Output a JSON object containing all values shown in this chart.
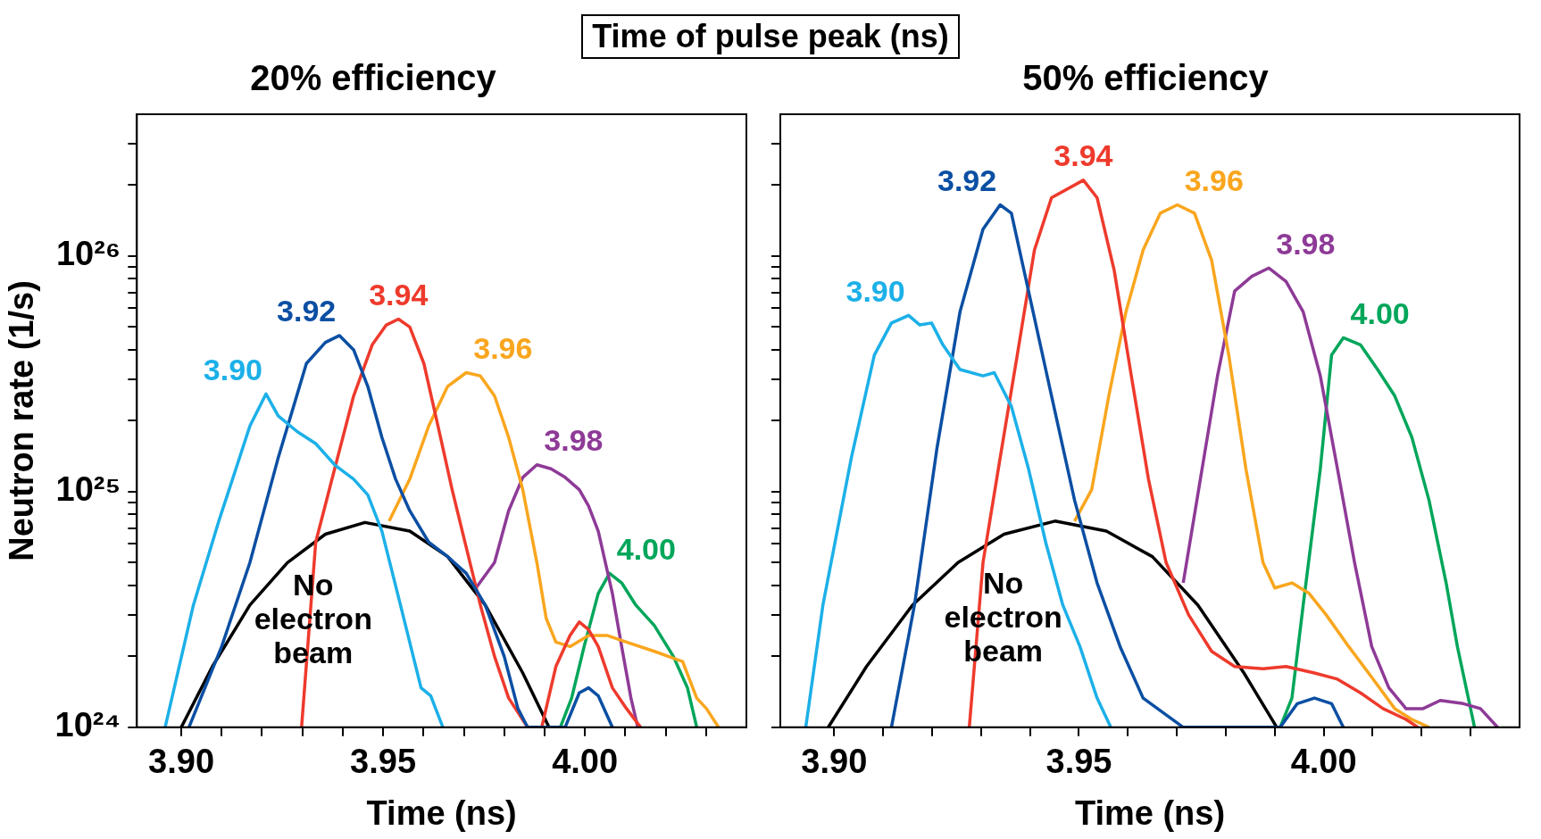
{
  "chart_data": [
    {
      "type": "line",
      "title": "20% efficiency",
      "xlabel": "Time (ns)",
      "ylabel": "Neutron rate (1/s)",
      "log": "y",
      "marker": "none",
      "line_style": "solid",
      "annotations": [
        "Time of pulse peak (ns)"
      ],
      "xlim": [
        3.889,
        4.04
      ],
      "xticks": [
        {
          "value": 3.9,
          "label": "3.90"
        },
        {
          "value": 3.91,
          "label": null
        },
        {
          "value": 3.92,
          "label": null
        },
        {
          "value": 3.93,
          "label": null
        },
        {
          "value": 3.94,
          "label": null
        },
        {
          "value": 3.95,
          "label": "3.95"
        },
        {
          "value": 3.96,
          "label": null
        },
        {
          "value": 3.97,
          "label": null
        },
        {
          "value": 3.98,
          "label": null
        },
        {
          "value": 3.99,
          "label": null
        },
        {
          "value": 4.0,
          "label": "4.00"
        },
        {
          "value": 4.01,
          "label": null
        },
        {
          "value": 4.02,
          "label": null
        },
        {
          "value": 4.03,
          "label": null
        }
      ],
      "ylim": [
        1e+24,
        4e+26
      ],
      "yticks": [
        {
          "value": 1e+24,
          "label": "10²⁴"
        },
        {
          "value": 2e+24,
          "label": null
        },
        {
          "value": 3e+24,
          "label": null
        },
        {
          "value": 4e+24,
          "label": null
        },
        {
          "value": 5e+24,
          "label": null
        },
        {
          "value": 6e+24,
          "label": null
        },
        {
          "value": 7e+24,
          "label": null
        },
        {
          "value": 8e+24,
          "label": null
        },
        {
          "value": 9e+24,
          "label": null
        },
        {
          "value": 1e+25,
          "label": "10²⁵"
        },
        {
          "value": 2e+25,
          "label": null
        },
        {
          "value": 3e+25,
          "label": null
        },
        {
          "value": 4e+25,
          "label": null
        },
        {
          "value": 5e+25,
          "label": null
        },
        {
          "value": 6e+25,
          "label": null
        },
        {
          "value": 7e+25,
          "label": null
        },
        {
          "value": 8e+25,
          "label": null
        },
        {
          "value": 9e+25,
          "label": null
        },
        {
          "value": 1e+26,
          "label": "10²⁶"
        },
        {
          "value": 2e+26,
          "label": null
        },
        {
          "value": 3e+26,
          "label": null
        }
      ],
      "series": [
        {
          "name": "3.90",
          "color": "#1cb0e8",
          "x": [
            3.896,
            3.903,
            3.9093,
            3.917,
            3.921,
            3.924,
            3.9287,
            3.9333,
            3.938,
            3.9427,
            3.9462,
            3.9497,
            3.9543,
            3.9594,
            3.9618,
            3.9648
          ],
          "values": [
            1e+24,
            3.3e+24,
            7.5e+24,
            1.9e+25,
            2.6e+25,
            2.1e+25,
            1.8e+25,
            1.6e+25,
            1.3e+25,
            1.13e+25,
            9.7e+24,
            6.8e+24,
            3.3e+24,
            1.47e+24,
            1.36e+24,
            1e+24
          ]
        },
        {
          "name": "3.92",
          "color": "#0b4fa3",
          "x": [
            3.9019,
            3.91,
            3.917,
            3.924,
            3.931,
            3.9357,
            3.9392,
            3.9427,
            3.9462,
            3.9497,
            3.9531,
            3.9566,
            3.9613,
            3.966,
            3.9706,
            3.9753,
            3.98,
            3.9834,
            3.9858,
            3.9951,
            3.9986,
            4.0009,
            4.0033,
            4.0068
          ],
          "values": [
            1e+24,
            2.2e+24,
            5e+24,
            1.39e+25,
            3.5e+25,
            4.3e+25,
            4.6e+25,
            4e+25,
            2.8e+25,
            1.7e+25,
            1.13e+25,
            8.3e+24,
            6.1e+24,
            5.3e+24,
            4.5e+24,
            3.3e+24,
            2e+24,
            1.2e+24,
            1e+24,
            1e+24,
            1.4e+24,
            1.47e+24,
            1.36e+24,
            1e+24
          ]
        },
        {
          "name": "3.94",
          "color": "#ee3a2c",
          "x": [
            3.9298,
            3.9333,
            3.938,
            3.9427,
            3.9473,
            3.9508,
            3.9538,
            3.9566,
            3.9601,
            3.9636,
            3.9671,
            3.9706,
            3.9741,
            3.9776,
            3.9811,
            3.9858,
            3.9893,
            3.9928,
            3.9963,
            3.9986,
            4.0009,
            4.0033,
            4.0068,
            4.0103,
            4.0138
          ],
          "values": [
            1e+24,
            6.1e+24,
            1.25e+25,
            2.55e+25,
            4.2e+25,
            5.1e+25,
            5.4e+25,
            5e+25,
            3.5e+25,
            1.9e+25,
            1.02e+25,
            5.8e+24,
            3.3e+24,
            2e+24,
            1.33e+24,
            1e+24,
            1e+24,
            1.81e+24,
            2.45e+24,
            2.8e+24,
            2.6e+24,
            2.2e+24,
            1.47e+24,
            1.2e+24,
            1e+24
          ]
        },
        {
          "name": "3.96",
          "color": "#f9a61e",
          "x": [
            3.9515,
            3.9566,
            3.9613,
            3.966,
            3.9706,
            3.9741,
            3.9776,
            3.9811,
            3.9846,
            3.9881,
            3.9904,
            3.9928,
            3.9963,
            4.0009,
            4.0056,
            4.0103,
            4.0172,
            4.0242,
            4.0277,
            4.0301,
            4.0331
          ],
          "values": [
            7.5e+24,
            1.13e+25,
            1.9e+25,
            2.8e+25,
            3.2e+25,
            3.1e+25,
            2.55e+25,
            1.7e+25,
            1.02e+25,
            5e+24,
            2.9e+24,
            2.3e+24,
            2.2e+24,
            2.45e+24,
            2.45e+24,
            2.3e+24,
            2.1e+24,
            1.9e+24,
            1.33e+24,
            1.2e+24,
            1e+24
          ]
        },
        {
          "name": "3.98",
          "color": "#8e3a97",
          "x": [
            3.973,
            3.9776,
            3.9811,
            3.9846,
            3.9881,
            3.9916,
            3.9951,
            3.9986,
            4.0009,
            4.0033,
            4.0068,
            4.0091,
            4.0114,
            4.0131
          ],
          "values": [
            3.9e+24,
            5e+24,
            8.3e+24,
            1.15e+25,
            1.3e+25,
            1.25e+25,
            1.15e+25,
            1.02e+25,
            8.7e+24,
            6.8e+24,
            3.7e+24,
            2.2e+24,
            1.33e+24,
            1e+24
          ]
        },
        {
          "name": "4.00",
          "color": "#00a65a",
          "x": [
            3.9939,
            3.9967,
            3.9998,
            4.0033,
            4.0061,
            4.0091,
            4.0126,
            4.0172,
            4.0219,
            4.0254,
            4.0277
          ],
          "values": [
            1e+24,
            1.33e+24,
            2.2e+24,
            3.7e+24,
            4.5e+24,
            4.1e+24,
            3.3e+24,
            2.7e+24,
            2e+24,
            1.47e+24,
            1e+24
          ]
        },
        {
          "name": "No electron beam",
          "color": "#000000",
          "x": [
            3.9,
            3.9077,
            3.917,
            3.9263,
            3.9357,
            3.9455,
            3.9566,
            3.966,
            3.9753,
            3.9846,
            3.9911
          ],
          "values": [
            1e+24,
            1.81e+24,
            3.3e+24,
            5e+24,
            6.6e+24,
            7.4e+24,
            6.8e+24,
            5.3e+24,
            3.3e+24,
            1.7e+24,
            1e+24
          ]
        }
      ]
    },
    {
      "type": "line",
      "title": "50% efficiency",
      "xlabel": "Time (ns)",
      "log": "y",
      "marker": "none",
      "line_style": "solid",
      "tick_labels": "x",
      "xlim": [
        3.889,
        4.04
      ],
      "xticks": [
        {
          "value": 3.9,
          "label": "3.90"
        },
        {
          "value": 3.91,
          "label": null
        },
        {
          "value": 3.92,
          "label": null
        },
        {
          "value": 3.93,
          "label": null
        },
        {
          "value": 3.94,
          "label": null
        },
        {
          "value": 3.95,
          "label": "3.95"
        },
        {
          "value": 3.96,
          "label": null
        },
        {
          "value": 3.97,
          "label": null
        },
        {
          "value": 3.98,
          "label": null
        },
        {
          "value": 3.99,
          "label": null
        },
        {
          "value": 4.0,
          "label": "4.00"
        },
        {
          "value": 4.01,
          "label": null
        },
        {
          "value": 4.02,
          "label": null
        },
        {
          "value": 4.03,
          "label": null
        }
      ],
      "ylim": [
        1e+24,
        4e+26
      ],
      "yticks": [
        {
          "value": 1e+24,
          "label": null
        },
        {
          "value": 2e+24,
          "label": null
        },
        {
          "value": 3e+24,
          "label": null
        },
        {
          "value": 4e+24,
          "label": null
        },
        {
          "value": 5e+24,
          "label": null
        },
        {
          "value": 6e+24,
          "label": null
        },
        {
          "value": 7e+24,
          "label": null
        },
        {
          "value": 8e+24,
          "label": null
        },
        {
          "value": 9e+24,
          "label": null
        },
        {
          "value": 1e+25,
          "label": null
        },
        {
          "value": 2e+25,
          "label": null
        },
        {
          "value": 3e+25,
          "label": null
        },
        {
          "value": 4e+25,
          "label": null
        },
        {
          "value": 5e+25,
          "label": null
        },
        {
          "value": 6e+25,
          "label": null
        },
        {
          "value": 7e+25,
          "label": null
        },
        {
          "value": 8e+25,
          "label": null
        },
        {
          "value": 9e+25,
          "label": null
        },
        {
          "value": 1e+26,
          "label": null
        },
        {
          "value": 2e+26,
          "label": null
        },
        {
          "value": 3e+26,
          "label": null
        }
      ],
      "series": [
        {
          "name": "3.90",
          "color": "#1cb0e8",
          "x": [
            3.8942,
            3.8977,
            3.9035,
            3.9082,
            3.9117,
            3.9152,
            3.9175,
            3.9199,
            3.9222,
            3.9257,
            3.9304,
            3.9327,
            3.9362,
            3.9397,
            3.9432,
            3.9467,
            3.9502,
            3.9537,
            3.9565
          ],
          "values": [
            1e+24,
            3.3e+24,
            1.39e+25,
            3.8e+25,
            5.2e+25,
            5.6e+25,
            5.1e+25,
            5.2e+25,
            4.2e+25,
            3.3e+25,
            3.1e+25,
            3.2e+25,
            2.3e+25,
            1.25e+25,
            6.1e+24,
            3.3e+24,
            2.2e+24,
            1.33e+24,
            1e+24
          ]
        },
        {
          "name": "3.92",
          "color": "#0b4fa3",
          "x": [
            3.9117,
            3.9164,
            3.921,
            3.9257,
            3.9304,
            3.9339,
            3.9362,
            3.9397,
            3.9444,
            3.9491,
            3.9537,
            3.9584,
            3.9631,
            3.9713,
            3.99,
            3.9911,
            3.9946,
            3.9981,
            4.0016,
            4.004
          ],
          "values": [
            1e+24,
            3.3e+24,
            1.53e+25,
            5.8e+25,
            1.3e+26,
            1.65e+26,
            1.52e+26,
            7.1e+25,
            2.55e+25,
            9.2e+24,
            4.1e+24,
            2.2e+24,
            1.33e+24,
            1e+24,
            1e+24,
            1e+24,
            1.26e+24,
            1.33e+24,
            1.26e+24,
            1e+24
          ]
        },
        {
          "name": "3.94",
          "color": "#ee3a2c",
          "x": [
            3.9276,
            3.9304,
            3.9339,
            3.9374,
            3.9409,
            3.9444,
            3.9509,
            3.9537,
            3.9572,
            3.9607,
            3.9642,
            3.9678,
            3.9724,
            3.9771,
            3.9818,
            3.9876,
            3.9923,
            3.9981,
            4.0028,
            4.0075,
            4.0121,
            4.0168,
            4.0192
          ],
          "values": [
            1e+24,
            5e+24,
            1.39e+25,
            3.8e+25,
            1.06e+26,
            1.77e+26,
            2.1e+26,
            1.77e+26,
            8.7e+25,
            3.1e+25,
            1.13e+25,
            5e+24,
            3e+24,
            2.1e+24,
            1.81e+24,
            1.77e+24,
            1.81e+24,
            1.7e+24,
            1.6e+24,
            1.4e+24,
            1.2e+24,
            1.08e+24,
            1e+24
          ]
        },
        {
          "name": "3.96",
          "color": "#f9a61e",
          "x": [
            3.9491,
            3.9526,
            3.9561,
            3.9596,
            3.9631,
            3.9666,
            3.9701,
            3.9736,
            3.9771,
            3.9806,
            3.9841,
            3.9876,
            3.99,
            3.9935,
            3.997,
            4.0005,
            4.0051,
            4.0098,
            4.0145,
            4.018,
            4.0215
          ],
          "values": [
            7.5e+24,
            1.02e+25,
            2.55e+25,
            5.8e+25,
            1.06e+26,
            1.52e+26,
            1.65e+26,
            1.52e+26,
            9.6e+25,
            3.8e+25,
            1.25e+25,
            5e+24,
            3.9e+24,
            4.1e+24,
            3.7e+24,
            3e+24,
            2.2e+24,
            1.63e+24,
            1.2e+24,
            1.08e+24,
            1e+24
          ]
        },
        {
          "name": "3.98",
          "color": "#8e3a97",
          "x": [
            3.9713,
            3.9748,
            3.9783,
            3.9818,
            3.9853,
            3.9888,
            3.9923,
            3.9958,
            3.9993,
            4.0028,
            4.0063,
            4.0098,
            4.0133,
            4.0168,
            4.0203,
            4.0238,
            4.0285,
            4.032,
            4.0355
          ],
          "values": [
            4.1e+24,
            1.13e+25,
            3.1e+25,
            7.1e+25,
            8.2e+25,
            8.9e+25,
            7.8e+25,
            5.8e+25,
            3.1e+25,
            1.25e+25,
            5e+24,
            2.2e+24,
            1.47e+24,
            1.2e+24,
            1.2e+24,
            1.3e+24,
            1.26e+24,
            1.2e+24,
            1e+24
          ]
        },
        {
          "name": "4.00",
          "color": "#00a65a",
          "x": [
            3.9911,
            3.9935,
            3.9958,
            3.9993,
            4.0016,
            4.004,
            4.0075,
            4.011,
            4.0145,
            4.018,
            4.0215,
            4.025,
            4.0273,
            4.0308
          ],
          "values": [
            1e+24,
            1.33e+24,
            3.3e+24,
            1.25e+25,
            3.8e+25,
            4.5e+25,
            4.2e+25,
            3.3e+25,
            2.55e+25,
            1.7e+25,
            9.2e+24,
            4.1e+24,
            2.2e+24,
            1e+24
          ]
        },
        {
          "name": "No electron beam",
          "color": "#000000",
          "x": [
            3.8988,
            3.9066,
            3.916,
            3.9253,
            3.9347,
            3.9451,
            3.9556,
            3.965,
            3.9743,
            3.9837,
            3.9904
          ],
          "values": [
            1e+24,
            1.81e+24,
            3.3e+24,
            5e+24,
            6.6e+24,
            7.5e+24,
            6.8e+24,
            5.3e+24,
            3.3e+24,
            1.7e+24,
            1e+24
          ]
        }
      ]
    }
  ]
}
